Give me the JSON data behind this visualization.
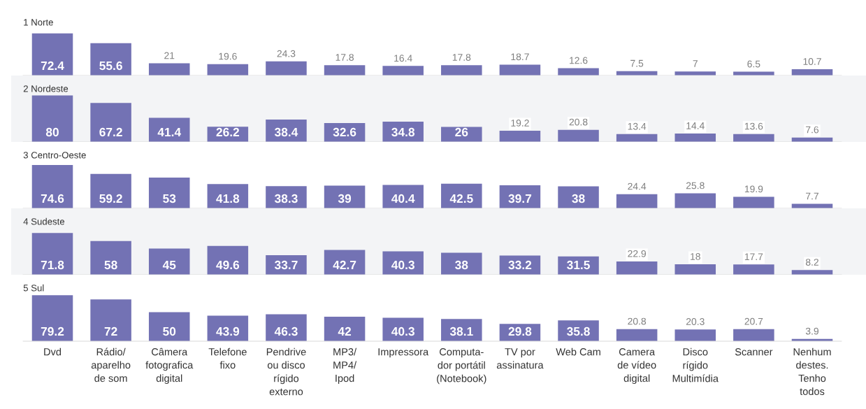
{
  "chart_data": [
    {
      "type": "bar",
      "title": "1 Norte",
      "categories": [
        null,
        null,
        null,
        null,
        null,
        null,
        null,
        null,
        null,
        null,
        null,
        null,
        null,
        null
      ],
      "values": [
        72.4,
        55.6,
        21,
        19.6,
        24.3,
        17.8,
        16.4,
        17.8,
        18.7,
        12.6,
        7.5,
        7,
        6.5,
        10.7
      ],
      "color": "#7372b4",
      "data_labels": true
    },
    {
      "type": "bar",
      "title": "2 Nordeste",
      "categories": [
        null,
        null,
        null,
        null,
        null,
        null,
        null,
        null,
        null,
        null,
        null,
        null,
        null,
        null
      ],
      "values": [
        80,
        67.2,
        41.4,
        26.2,
        38.4,
        32.6,
        34.8,
        26,
        19.2,
        20.8,
        13.4,
        14.4,
        13.6,
        7.6
      ],
      "color": "#7372b4",
      "data_labels": true
    },
    {
      "type": "bar",
      "title": "3 Centro-Oeste",
      "categories": [
        null,
        null,
        null,
        null,
        null,
        null,
        null,
        null,
        null,
        null,
        null,
        null,
        null,
        null
      ],
      "values": [
        74.6,
        59.2,
        53,
        41.8,
        38.3,
        39,
        40.4,
        42.5,
        39.7,
        38,
        24.4,
        25.8,
        19.9,
        7.7
      ],
      "color": "#7372b4",
      "data_labels": true
    },
    {
      "type": "bar",
      "title": "4 Sudeste",
      "categories": [
        null,
        null,
        null,
        null,
        null,
        null,
        null,
        null,
        null,
        null,
        null,
        null,
        null,
        null
      ],
      "values": [
        71.8,
        58,
        45,
        49.6,
        33.7,
        42.7,
        40.3,
        38,
        33.2,
        31.5,
        22.9,
        18,
        17.7,
        8.2
      ],
      "color": "#7372b4",
      "data_labels": true
    },
    {
      "type": "bar",
      "title": "5 Sul",
      "categories": [
        "Dvd",
        "Rádio/\naparelho\nde som",
        "Câmera\nfotografica\ndigital",
        "Telefone\nfixo",
        "Pendrive\nou disco\nrígido\nexterno",
        "MP3/\nMP4/\nIpod",
        "Impressora",
        "Computa-\ndor portátil\n(Notebook)",
        "TV por\nassinatura",
        "Web Cam",
        "Camera\nde vídeo\ndigital",
        "Disco\nrígido\nMultimídia",
        "Scanner",
        "Nenhum\ndestes.\nTenho\ntodos"
      ],
      "values": [
        79.2,
        72,
        50,
        43.9,
        46.3,
        42,
        40.3,
        38.1,
        29.8,
        35.8,
        20.8,
        20.3,
        20.7,
        3.9
      ],
      "color": "#7372b4",
      "data_labels": true,
      "tick_labels": "x"
    }
  ]
}
